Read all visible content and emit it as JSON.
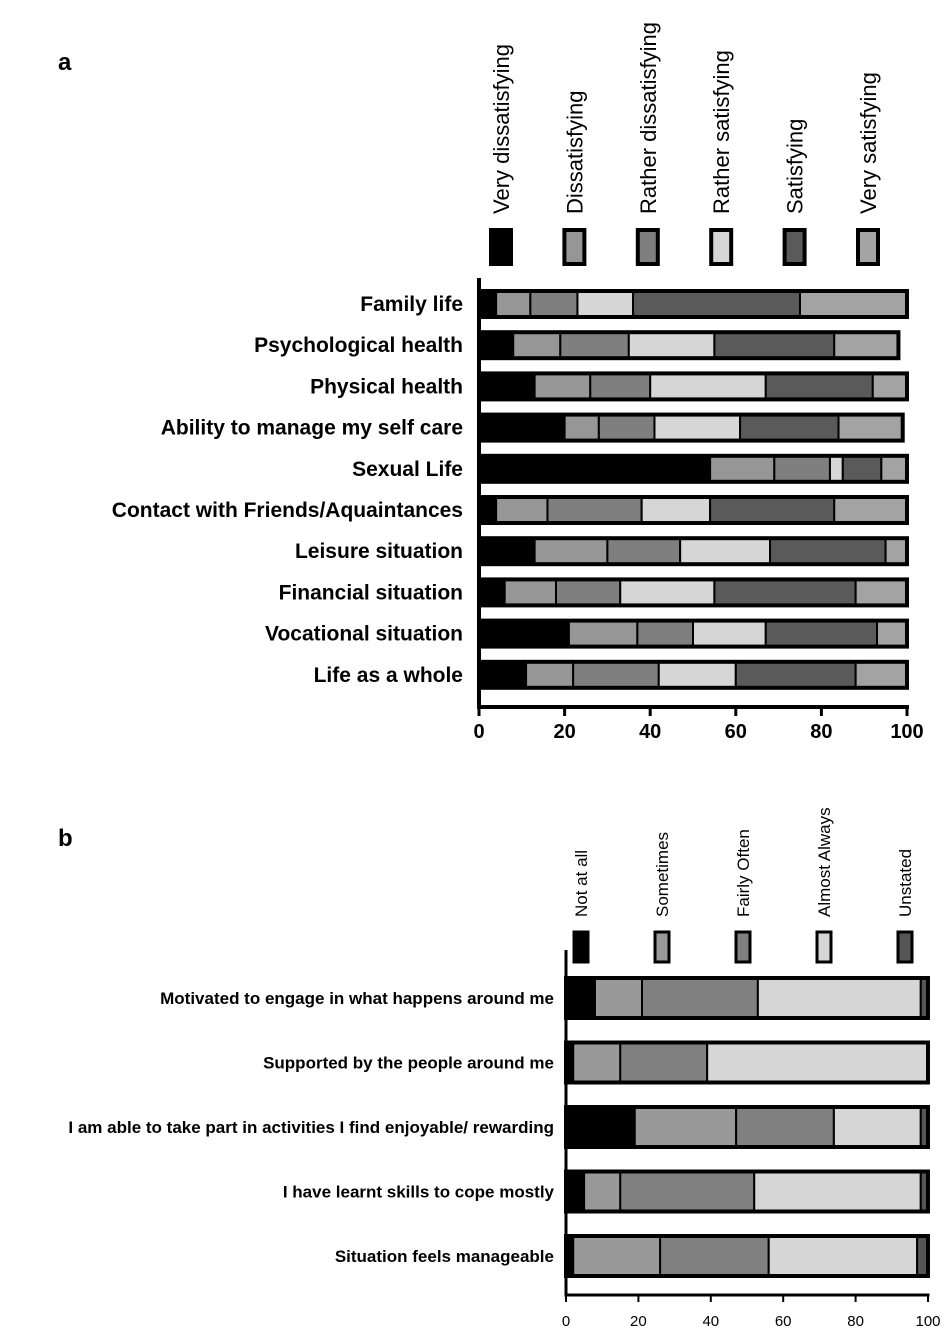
{
  "chart_data": [
    {
      "panel": "a",
      "type": "bar",
      "orientation": "horizontal",
      "stacked": true,
      "title": "",
      "xlabel": "",
      "ylabel": "",
      "xlim": [
        0,
        100
      ],
      "xticks": [
        "0",
        "20",
        "40",
        "60",
        "80",
        "100"
      ],
      "legend_position": "top",
      "colors": [
        "#000000",
        "#969696",
        "#7f7f7f",
        "#d6d6d6",
        "#5a5a5a",
        "#a3a3a3"
      ],
      "categories": [
        "Family life",
        "Psychological health",
        "Physical health",
        "Ability to manage my self care",
        "Sexual Life",
        "Contact with Friends/Aquaintances",
        "Leisure situation",
        "Financial situation",
        "Vocational situation",
        "Life as a whole"
      ],
      "series": [
        {
          "name": "Very dissatisfying",
          "values": [
            4,
            8,
            13,
            20,
            54,
            4,
            13,
            6,
            21,
            11
          ]
        },
        {
          "name": "Dissatisfying",
          "values": [
            8,
            11,
            13,
            8,
            15,
            12,
            17,
            12,
            16,
            11
          ]
        },
        {
          "name": "Rather dissatisfying",
          "values": [
            11,
            16,
            14,
            13,
            13,
            22,
            17,
            15,
            13,
            20
          ]
        },
        {
          "name": "Rather satisfying",
          "values": [
            13,
            20,
            27,
            20,
            3,
            16,
            21,
            22,
            17,
            18
          ]
        },
        {
          "name": "Satisfying",
          "values": [
            39,
            28,
            25,
            23,
            9,
            29,
            27,
            33,
            26,
            28
          ]
        },
        {
          "name": "Very satisfying",
          "values": [
            25,
            15,
            8,
            15,
            6,
            17,
            5,
            12,
            7,
            12
          ]
        }
      ]
    },
    {
      "panel": "b",
      "type": "bar",
      "orientation": "horizontal",
      "stacked": true,
      "title": "",
      "xlabel": "",
      "ylabel": "",
      "xlim": [
        0,
        100
      ],
      "xticks": [
        "0",
        "20",
        "40",
        "60",
        "80",
        "100"
      ],
      "legend_position": "top",
      "colors": [
        "#000000",
        "#999999",
        "#808080",
        "#d6d6d6",
        "#555555"
      ],
      "categories": [
        "Motivated to engage in what happens around me",
        "Supported by the people around me",
        "I am able to take part in activities I find enjoyable/ rewarding",
        "I have learnt skills to cope mostly",
        "Situation feels manageable"
      ],
      "series": [
        {
          "name": "Not at all",
          "values": [
            8,
            2,
            19,
            5,
            2
          ]
        },
        {
          "name": "Sometimes",
          "values": [
            13,
            13,
            28,
            10,
            24
          ]
        },
        {
          "name": "Fairly Often",
          "values": [
            32,
            24,
            27,
            37,
            30
          ]
        },
        {
          "name": "Almost Always",
          "values": [
            45,
            61,
            24,
            46,
            41
          ]
        },
        {
          "name": "Unstated",
          "values": [
            2,
            0,
            2,
            2,
            3
          ]
        }
      ]
    }
  ]
}
